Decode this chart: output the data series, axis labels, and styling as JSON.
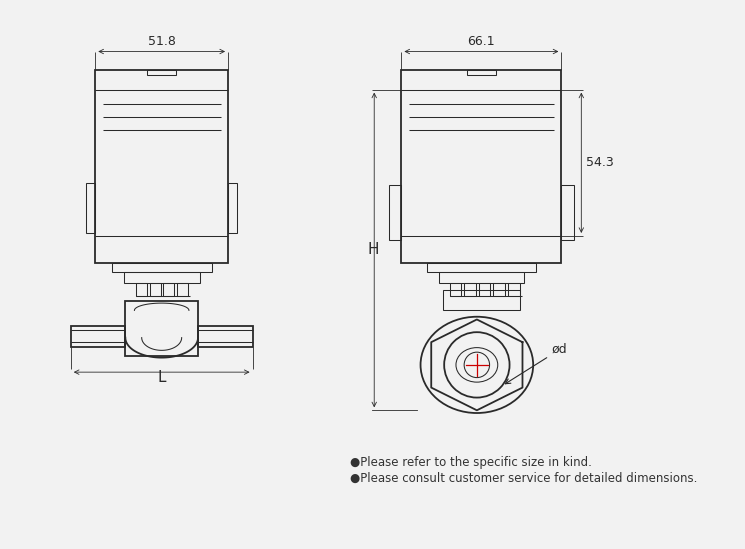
{
  "bg_color": "#f2f2f2",
  "line_color": "#2a2a2a",
  "red_color": "#cc0000",
  "note1": "●Please refer to the specific size in kind.",
  "note2": "●Please consult customer service for detailed dimensions.",
  "dim_51_8": "51.8",
  "dim_66_1": "66.1",
  "dim_54_3": "54.3",
  "dim_H": "H",
  "dim_L": "L",
  "dim_d": "ød"
}
